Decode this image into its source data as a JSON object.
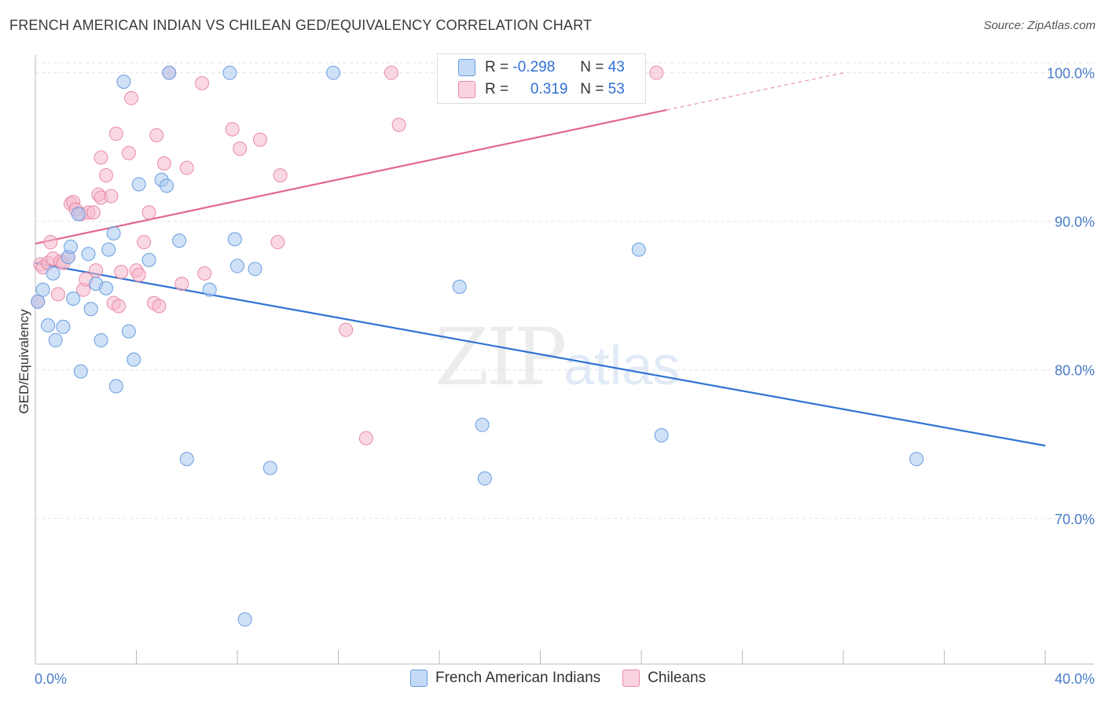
{
  "title": "FRENCH AMERICAN INDIAN VS CHILEAN GED/EQUIVALENCY CORRELATION CHART",
  "source": "Source: ZipAtlas.com",
  "watermark": {
    "zip": "ZIP",
    "atlas": "atlas"
  },
  "legend": {
    "rows": [
      {
        "r_label": "R = ",
        "r_value": "-0.298",
        "n_label": "N = ",
        "n_value": "43",
        "color": "#a8c8f0"
      },
      {
        "r_label": "R = ",
        "r_value": "0.319",
        "n_label": "N = ",
        "n_value": "53",
        "color": "#f6b8cb"
      }
    ]
  },
  "bottom_legend": [
    "French American Indians",
    "Chileans"
  ],
  "chart_data": {
    "type": "scatter",
    "title": "FRENCH AMERICAN INDIAN VS CHILEAN GED/EQUIVALENCY CORRELATION CHART",
    "xlabel": "",
    "ylabel": "GED/Equivalency",
    "xlim": [
      0,
      40
    ],
    "ylim": [
      60.2,
      101.2
    ],
    "x_tick_labels": [
      "0.0%",
      "40.0%"
    ],
    "y_ticks": [
      70,
      80,
      90,
      100
    ],
    "y_tick_labels": [
      "70.0%",
      "80.0%",
      "90.0%",
      "100.0%"
    ],
    "series": [
      {
        "name": "French American Indians",
        "color": "#a8c8f0",
        "stroke": "#6a9ee0",
        "trend": {
          "x0": 0,
          "y0": 87.2,
          "x1": 40,
          "y1": 74.9,
          "color": "#2f73d3"
        },
        "points": [
          [
            0.1,
            84.6
          ],
          [
            0.3,
            85.4
          ],
          [
            0.5,
            83.0
          ],
          [
            0.7,
            86.5
          ],
          [
            0.8,
            82.0
          ],
          [
            1.1,
            82.9
          ],
          [
            1.3,
            87.6
          ],
          [
            1.4,
            88.3
          ],
          [
            1.5,
            84.8
          ],
          [
            1.7,
            90.5
          ],
          [
            1.8,
            79.9
          ],
          [
            2.1,
            87.8
          ],
          [
            2.2,
            84.1
          ],
          [
            2.4,
            85.8
          ],
          [
            2.6,
            82.0
          ],
          [
            2.8,
            85.5
          ],
          [
            2.9,
            88.1
          ],
          [
            3.1,
            89.2
          ],
          [
            3.2,
            78.9
          ],
          [
            3.5,
            99.4
          ],
          [
            3.7,
            82.6
          ],
          [
            3.9,
            80.7
          ],
          [
            4.1,
            92.5
          ],
          [
            4.5,
            87.4
          ],
          [
            5.0,
            92.8
          ],
          [
            5.2,
            92.4
          ],
          [
            5.3,
            100.0
          ],
          [
            5.7,
            88.7
          ],
          [
            6.0,
            74.0
          ],
          [
            6.9,
            85.4
          ],
          [
            7.7,
            100.0
          ],
          [
            7.9,
            88.8
          ],
          [
            8.0,
            87.0
          ],
          [
            8.3,
            63.2
          ],
          [
            8.7,
            86.8
          ],
          [
            9.3,
            73.4
          ],
          [
            11.8,
            100.0
          ],
          [
            16.8,
            85.6
          ],
          [
            17.7,
            76.3
          ],
          [
            17.8,
            72.7
          ],
          [
            23.9,
            88.1
          ],
          [
            24.8,
            75.6
          ],
          [
            34.9,
            74.0
          ]
        ]
      },
      {
        "name": "Chileans",
        "color": "#f6b8cb",
        "stroke": "#e88aa8",
        "trend": {
          "x0": 0,
          "y0": 88.5,
          "x1": 25,
          "y1": 97.5,
          "dash_x1": 32,
          "dash_y1": 100.0,
          "color": "#e0688f"
        },
        "points": [
          [
            0.1,
            84.6
          ],
          [
            0.2,
            87.1
          ],
          [
            0.3,
            86.9
          ],
          [
            0.5,
            87.2
          ],
          [
            0.6,
            88.6
          ],
          [
            0.7,
            87.5
          ],
          [
            0.9,
            85.1
          ],
          [
            1.0,
            87.3
          ],
          [
            1.1,
            87.2
          ],
          [
            1.3,
            87.6
          ],
          [
            1.4,
            91.2
          ],
          [
            1.5,
            91.3
          ],
          [
            1.6,
            90.8
          ],
          [
            1.8,
            90.5
          ],
          [
            1.9,
            85.4
          ],
          [
            2.0,
            86.1
          ],
          [
            2.1,
            90.6
          ],
          [
            2.3,
            90.6
          ],
          [
            2.4,
            86.7
          ],
          [
            2.5,
            91.8
          ],
          [
            2.6,
            91.6
          ],
          [
            2.6,
            94.3
          ],
          [
            2.8,
            93.1
          ],
          [
            3.0,
            91.7
          ],
          [
            3.1,
            84.5
          ],
          [
            3.2,
            95.9
          ],
          [
            3.3,
            84.3
          ],
          [
            3.4,
            86.6
          ],
          [
            3.7,
            94.6
          ],
          [
            3.8,
            98.3
          ],
          [
            4.0,
            86.7
          ],
          [
            4.1,
            86.4
          ],
          [
            4.3,
            88.6
          ],
          [
            4.5,
            90.6
          ],
          [
            4.7,
            84.5
          ],
          [
            4.8,
            95.8
          ],
          [
            4.9,
            84.3
          ],
          [
            5.1,
            93.9
          ],
          [
            5.3,
            100.0
          ],
          [
            5.8,
            85.8
          ],
          [
            6.0,
            93.6
          ],
          [
            6.6,
            99.3
          ],
          [
            6.7,
            86.5
          ],
          [
            7.8,
            96.2
          ],
          [
            8.1,
            94.9
          ],
          [
            8.9,
            95.5
          ],
          [
            9.6,
            88.6
          ],
          [
            9.7,
            93.1
          ],
          [
            12.3,
            82.7
          ],
          [
            13.1,
            75.4
          ],
          [
            14.1,
            100.0
          ],
          [
            14.4,
            96.5
          ],
          [
            24.6,
            100.0
          ]
        ]
      }
    ]
  }
}
